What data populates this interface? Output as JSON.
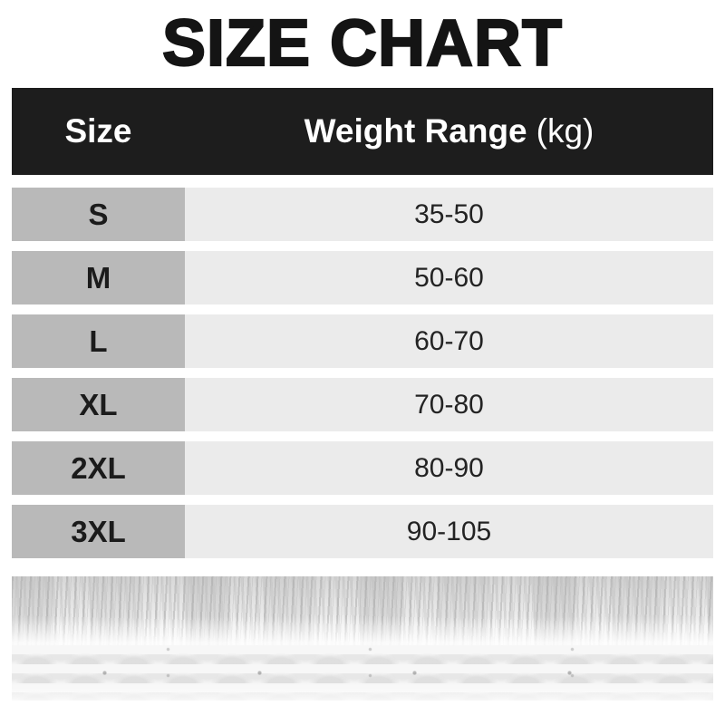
{
  "title": "SIZE CHART",
  "table": {
    "columns": {
      "size": "Size",
      "weight_strong": "Weight Range",
      "weight_unit": "(kg)"
    },
    "rows": [
      {
        "size": "S",
        "range": "35-50"
      },
      {
        "size": "M",
        "range": "50-60"
      },
      {
        "size": "L",
        "range": "60-70"
      },
      {
        "size": "XL",
        "range": "70-80"
      },
      {
        "size": "2XL",
        "range": "80-90"
      },
      {
        "size": "3XL",
        "range": "90-105"
      }
    ]
  },
  "footer_image": {
    "description": "white knitted fabric with fringe"
  },
  "colors": {
    "header_bg": "#1d1d1d",
    "header_text": "#ffffff",
    "size_cell_bg": "#b9b9b9",
    "range_cell_bg": "#ebebeb",
    "title_text": "#141414",
    "page_bg": "#ffffff"
  },
  "chart_data": {
    "type": "table",
    "title": "SIZE CHART",
    "columns": [
      "Size",
      "Weight Range (kg)"
    ],
    "rows": [
      [
        "S",
        "35-50"
      ],
      [
        "M",
        "50-60"
      ],
      [
        "L",
        "60-70"
      ],
      [
        "XL",
        "70-80"
      ],
      [
        "2XL",
        "80-90"
      ],
      [
        "3XL",
        "90-105"
      ]
    ]
  }
}
